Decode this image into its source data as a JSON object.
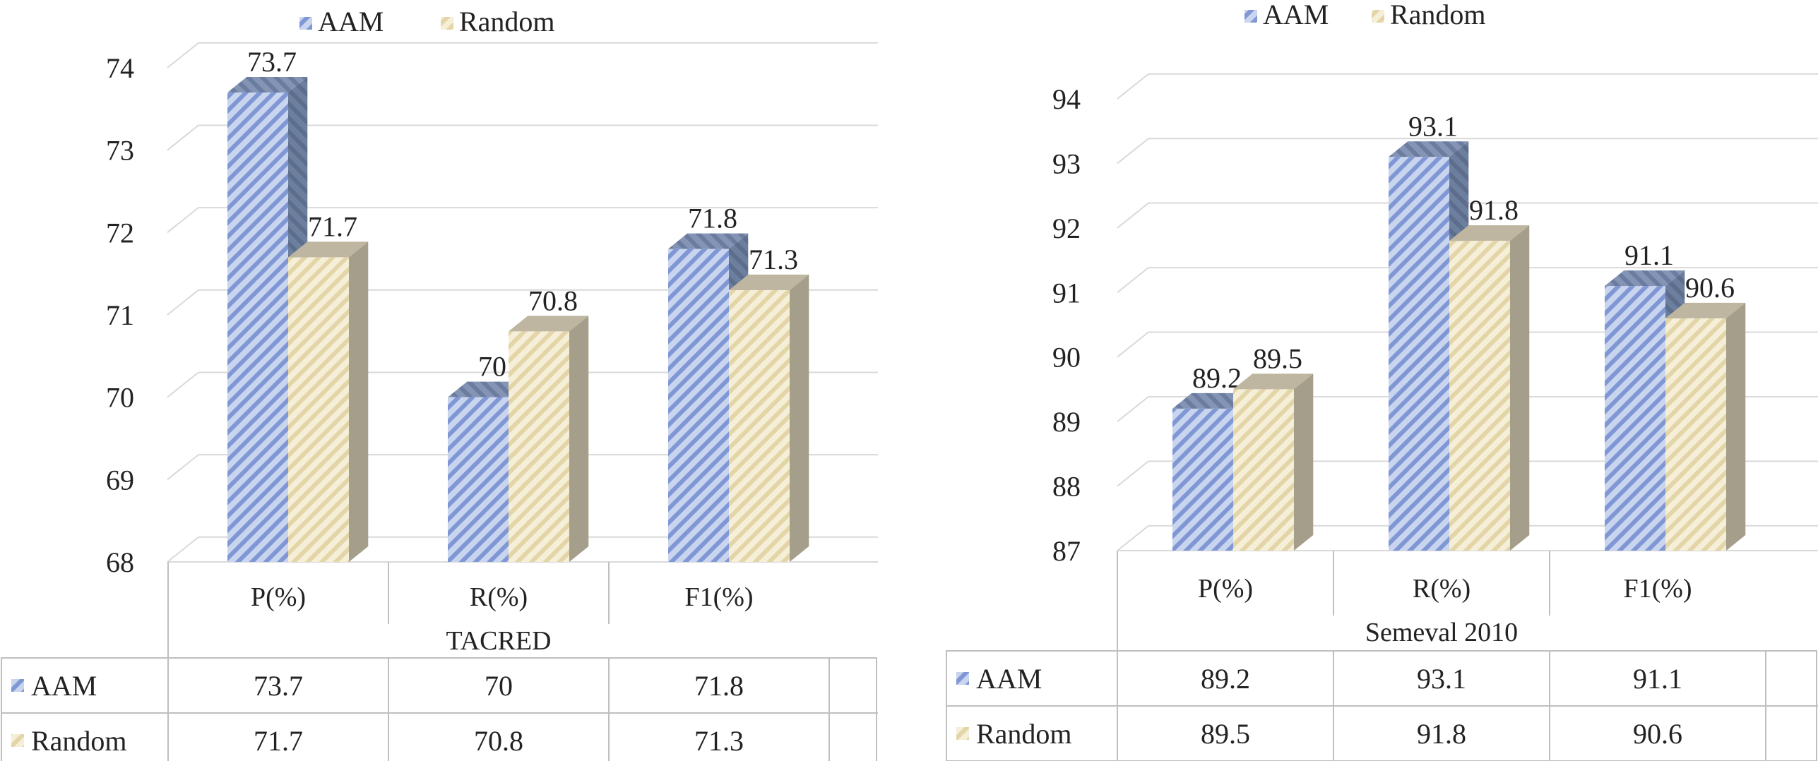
{
  "chart_data": [
    {
      "type": "bar",
      "title": "TACRED",
      "categories": [
        "P(%)",
        "R(%)",
        "F1(%)"
      ],
      "series": [
        {
          "name": "AAM",
          "values": [
            73.7,
            70,
            71.8
          ]
        },
        {
          "name": "Random",
          "values": [
            71.7,
            70.8,
            71.3
          ]
        }
      ],
      "yticks": [
        68,
        69,
        70,
        71,
        72,
        73,
        74
      ],
      "ylim": [
        68,
        74
      ],
      "xlabel": "TACRED",
      "legend": "top-left",
      "grid": true,
      "table": {
        "rows": [
          {
            "label": "AAM",
            "values": [
              "73.7",
              "70",
              "71.8"
            ]
          },
          {
            "label": "Random",
            "values": [
              "71.7",
              "70.8",
              "71.3"
            ]
          }
        ]
      }
    },
    {
      "type": "bar",
      "title": "Semeval 2010",
      "categories": [
        "P(%)",
        "R(%)",
        "F1(%)"
      ],
      "series": [
        {
          "name": "AAM",
          "values": [
            89.2,
            93.1,
            91.1
          ]
        },
        {
          "name": "Random",
          "values": [
            89.5,
            91.8,
            90.6
          ]
        }
      ],
      "yticks": [
        87,
        88,
        89,
        90,
        91,
        92,
        93,
        94
      ],
      "ylim": [
        87,
        94
      ],
      "xlabel": "Semeval 2010",
      "legend": "top-center",
      "grid": true,
      "table": {
        "rows": [
          {
            "label": "AAM",
            "values": [
              "89.2",
              "93.1",
              "91.1"
            ]
          },
          {
            "label": "Random",
            "values": [
              "89.5",
              "91.8",
              "90.6"
            ]
          }
        ]
      }
    }
  ],
  "colors": {
    "aam_light": "#c9d4ee",
    "aam_dark": "#7f97d4",
    "aam_side": "#6d7f9e",
    "aam_top": "#8494b4",
    "random_light": "#f6efd8",
    "random_dark": "#e3d5a8",
    "random_side": "#a49e8a",
    "random_top": "#beb6a0",
    "grid": "#d9d9d9",
    "table_line": "#bfbfbf"
  }
}
